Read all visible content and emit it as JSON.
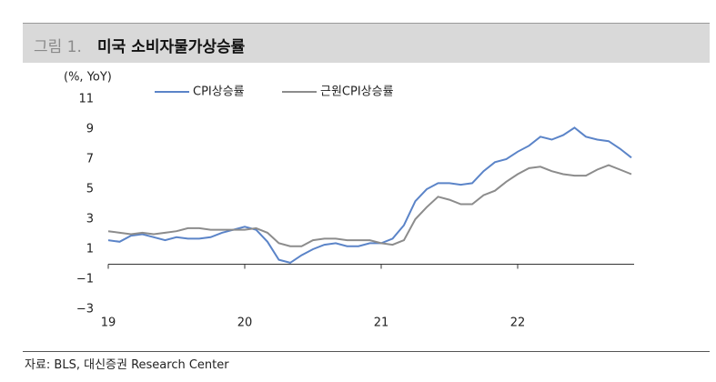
{
  "header": {
    "figure": "그림 1.",
    "title": "미국 소비자물가상승률"
  },
  "chart_data": {
    "type": "line",
    "y_unit_label": "(%, YoY)",
    "categories": [
      "19",
      null,
      null,
      null,
      null,
      null,
      null,
      null,
      null,
      null,
      null,
      null,
      "20",
      null,
      null,
      null,
      null,
      null,
      null,
      null,
      null,
      null,
      null,
      null,
      "21",
      null,
      null,
      null,
      null,
      null,
      null,
      null,
      null,
      null,
      null,
      null,
      "22",
      null,
      null,
      null,
      null,
      null,
      null,
      null,
      null,
      null,
      null
    ],
    "series": [
      {
        "name": "CPI상승률",
        "color": "#5b84c8",
        "values": [
          1.6,
          1.5,
          1.9,
          2.0,
          1.8,
          1.6,
          1.8,
          1.7,
          1.7,
          1.8,
          2.1,
          2.3,
          2.5,
          2.3,
          1.5,
          0.3,
          0.1,
          0.6,
          1.0,
          1.3,
          1.4,
          1.2,
          1.2,
          1.4,
          1.4,
          1.7,
          2.6,
          4.2,
          5.0,
          5.4,
          5.4,
          5.3,
          5.4,
          6.2,
          6.8,
          7.0,
          7.5,
          7.9,
          8.5,
          8.3,
          8.6,
          9.1,
          8.5,
          8.3,
          8.2,
          7.7,
          7.1
        ]
      },
      {
        "name": "근원CPI상승률",
        "color": "#8c8c8c",
        "values": [
          2.2,
          2.1,
          2.0,
          2.1,
          2.0,
          2.1,
          2.2,
          2.4,
          2.4,
          2.3,
          2.3,
          2.3,
          2.3,
          2.4,
          2.1,
          1.4,
          1.2,
          1.2,
          1.6,
          1.7,
          1.7,
          1.6,
          1.6,
          1.6,
          1.4,
          1.3,
          1.6,
          3.0,
          3.8,
          4.5,
          4.3,
          4.0,
          4.0,
          4.6,
          4.9,
          5.5,
          6.0,
          6.4,
          6.5,
          6.2,
          6.0,
          5.9,
          5.9,
          6.3,
          6.6,
          6.3,
          6.0
        ]
      }
    ],
    "ylim": [
      -3,
      11
    ],
    "yticks": [
      {
        "value": -3,
        "label": "−3"
      },
      {
        "value": -1,
        "label": "−1"
      },
      1,
      3,
      5,
      7,
      9,
      11
    ]
  },
  "source": "자료: BLS, 대신증권 Research Center"
}
